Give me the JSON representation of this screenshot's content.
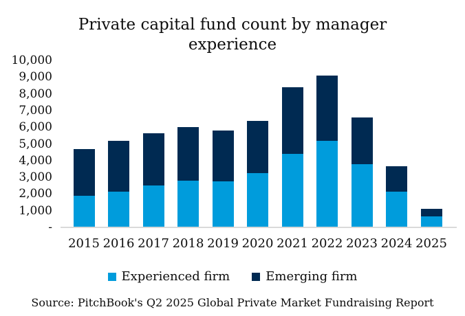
{
  "title": "Private capital fund count by manager experience",
  "source": "Source: PitchBook's Q2 2025 Global Private Market Fundraising Report",
  "chart_data": {
    "type": "bar",
    "stacked": true,
    "title": "Private capital fund count by manager experience",
    "categories": [
      "2015",
      "2016",
      "2017",
      "2018",
      "2019",
      "2020",
      "2021",
      "2022",
      "2023",
      "2024",
      "2025"
    ],
    "series": [
      {
        "name": "Experienced firm",
        "color": "#009CDC",
        "values": [
          1900,
          2150,
          2500,
          2800,
          2750,
          3250,
          4400,
          5200,
          3800,
          2150,
          650
        ]
      },
      {
        "name": "Emerging firm",
        "color": "#002A52",
        "values": [
          2800,
          3050,
          3150,
          3200,
          3050,
          3150,
          4000,
          3900,
          2800,
          1500,
          450
        ]
      }
    ],
    "totals": [
      4700,
      5200,
      5650,
      6000,
      5800,
      6400,
      8400,
      9100,
      6600,
      3650,
      1100
    ],
    "xlabel": "",
    "ylabel": "",
    "ylim": [
      0,
      10000
    ],
    "ytick_interval": 1000,
    "ytick_labels": [
      "-",
      "1,000",
      "2,000",
      "3,000",
      "4,000",
      "5,000",
      "6,000",
      "7,000",
      "8,000",
      "9,000",
      "10,000"
    ],
    "grid": false,
    "legend_position": "bottom",
    "baseline_color": "#D9D9D9"
  }
}
